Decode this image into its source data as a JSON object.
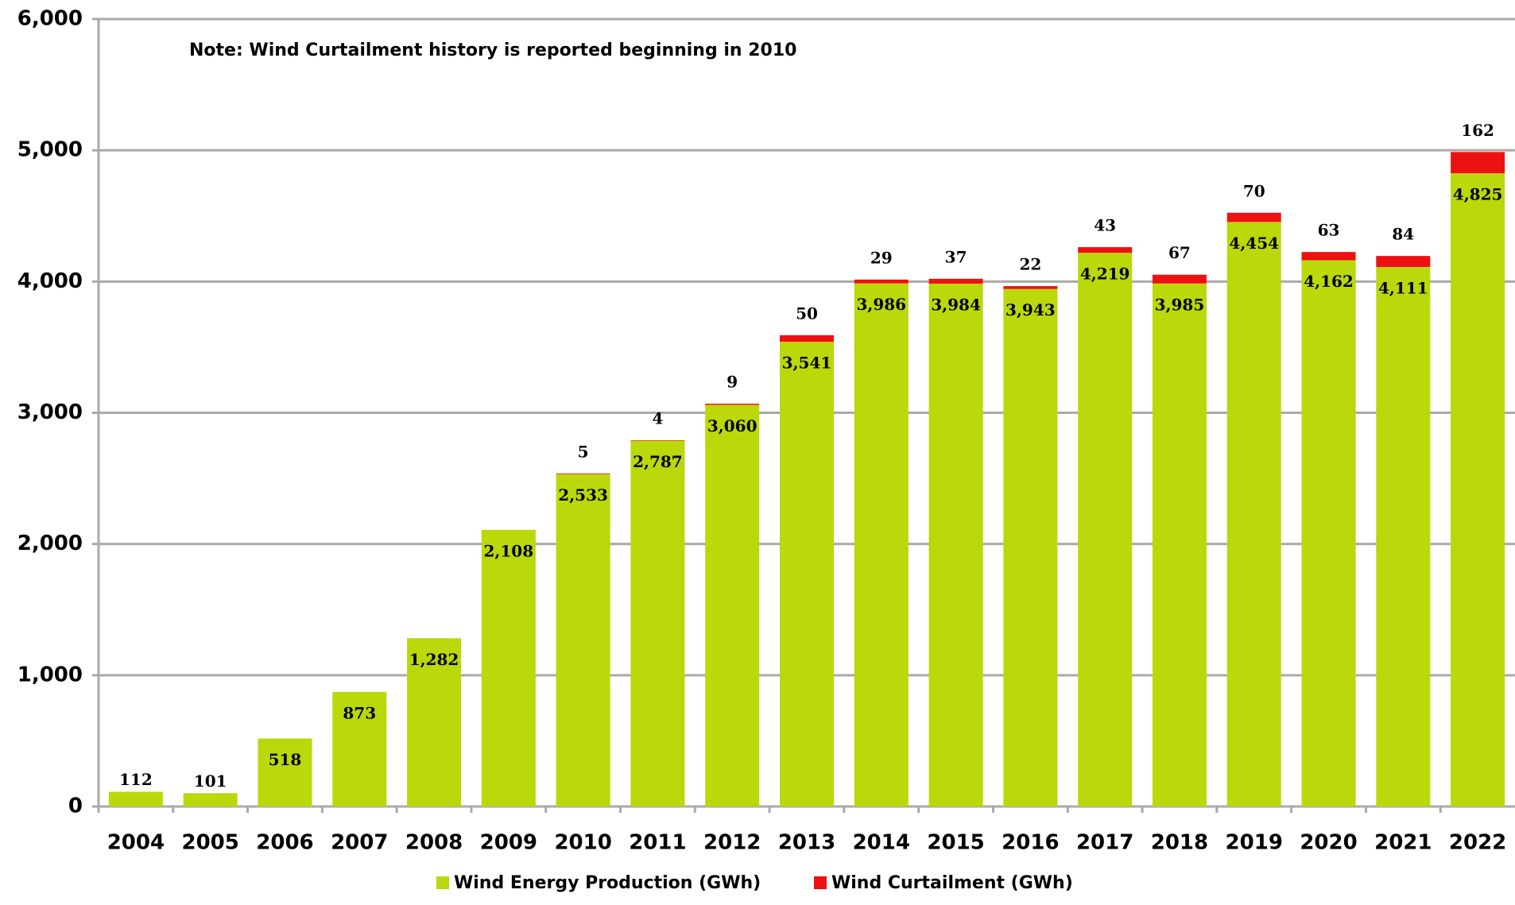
{
  "chart_data": {
    "type": "stacked_bar",
    "annotation": "Note: Wind Curtailment history is reported beginning in 2010",
    "categories": [
      "2004",
      "2005",
      "2006",
      "2007",
      "2008",
      "2009",
      "2010",
      "2011",
      "2012",
      "2013",
      "2014",
      "2015",
      "2016",
      "2017",
      "2018",
      "2019",
      "2020",
      "2021",
      "2022"
    ],
    "series": [
      {
        "name": "Wind Energy Production (GWh)",
        "color": "#bad80a",
        "values": [
          112,
          101,
          518,
          873,
          1282,
          2108,
          2533,
          2787,
          3060,
          3541,
          3986,
          3984,
          3943,
          4219,
          3985,
          4454,
          4162,
          4111,
          4825
        ],
        "value_labels": [
          "112",
          "101",
          "518",
          "873",
          "1,282",
          "2,108",
          "2,533",
          "2,787",
          "3,060",
          "3,541",
          "3,986",
          "3,984",
          "3,943",
          "4,219",
          "3,985",
          "4,454",
          "4,162",
          "4,111",
          "4,825"
        ]
      },
      {
        "name": "Wind Curtailment (GWh)",
        "color": "#ee1111",
        "values": [
          null,
          null,
          null,
          null,
          null,
          null,
          5,
          4,
          9,
          50,
          29,
          37,
          22,
          43,
          67,
          70,
          63,
          84,
          162
        ]
      }
    ],
    "ylim": [
      0,
      6000
    ],
    "yticks": [
      0,
      {
        "value": 1000,
        "label": "1,000"
      },
      {
        "value": 2000,
        "label": "2,000"
      },
      {
        "value": 3000,
        "label": "3,000"
      },
      {
        "value": 4000,
        "label": "4,000"
      },
      {
        "value": 5000,
        "label": "5,000"
      },
      {
        "value": 6000,
        "label": "6,000"
      }
    ],
    "grid": true,
    "legend": "bottom"
  }
}
